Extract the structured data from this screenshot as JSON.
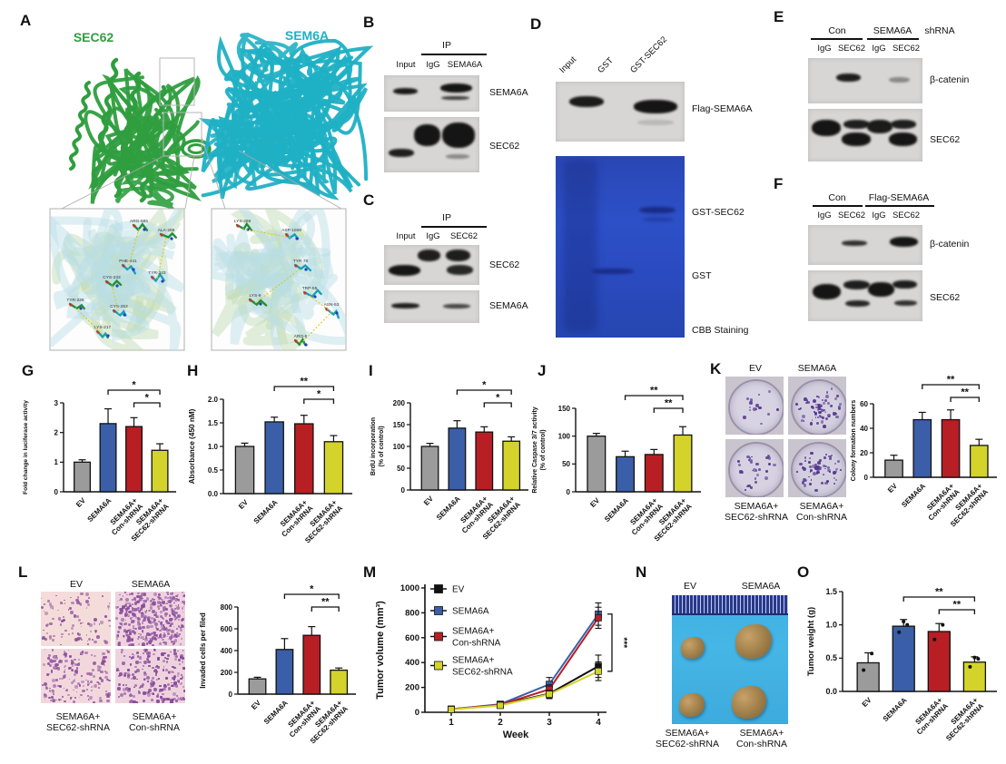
{
  "colors": {
    "bar_gray": "#9b9b9b",
    "bar_blue": "#3a5fa8",
    "bar_red": "#b71f25",
    "bar_yellow": "#d3d32b",
    "protein_green": "#2f9e3f",
    "protein_cyan": "#1fb0c4",
    "gel_blue": "#2b4cc0",
    "photo_blue": "#3fb0e2",
    "colony_purple": "#53368f",
    "invasion_purple": "#8a4d9c"
  },
  "bar_label_lines": [
    [
      "EV"
    ],
    [
      "SEMA6A"
    ],
    [
      "SEMA6A+",
      "Con-shRNA"
    ],
    [
      "SEMA6A+",
      "SEC62-shRNA"
    ]
  ],
  "panels": {
    "A": {
      "label": "A",
      "protein_left": "SEC62",
      "protein_right": "SEM6A",
      "inset_left_residues": [
        "ARG-585",
        "ALA-288",
        "PHE-241",
        "TYR-243",
        "CYS-233",
        "CYS-253",
        "TYR-226",
        "LYS-217"
      ],
      "inset_right_residues": [
        "LYS-368",
        "ASP-1009",
        "TYR-70",
        "TRP-55",
        "ASN-53",
        "LYS-9",
        "ARG-6"
      ]
    },
    "B": {
      "label": "B",
      "ip": "IP",
      "lanes": [
        "Input",
        "IgG",
        "SEMA6A"
      ],
      "blot1": "SEMA6A",
      "blot2": "SEC62"
    },
    "C": {
      "label": "C",
      "ip": "IP",
      "lanes": [
        "Input",
        "IgG",
        "SEC62"
      ],
      "blot1": "SEC62",
      "blot2": "SEMA6A"
    },
    "D": {
      "label": "D",
      "lanes": [
        "Input",
        "GST",
        "GST-SEC62"
      ],
      "blot1": "Flag-SEMA6A",
      "gel_band1": "GST-SEC62",
      "gel_band2": "GST",
      "gel_caption": "CBB Staining"
    },
    "E": {
      "label": "E",
      "group1": "Con",
      "group2": "SEMA6A",
      "suffix": "shRNA",
      "lanes": [
        "IgG",
        "SEC62",
        "IgG",
        "SEC62"
      ],
      "blot1": "β-catenin",
      "blot2": "SEC62"
    },
    "F": {
      "label": "F",
      "group1": "Con",
      "group2": "Flag-SEMA6A",
      "lanes": [
        "IgG",
        "SEC62",
        "IgG",
        "SEC62"
      ],
      "blot1": "β-catenin",
      "blot2": "SEC62"
    },
    "G": {
      "label": "G"
    },
    "H": {
      "label": "H"
    },
    "I": {
      "label": "I"
    },
    "J": {
      "label": "J"
    },
    "K": {
      "label": "K",
      "img_top": [
        "EV",
        "SEMA6A"
      ],
      "img_bottom": [
        [
          "SEMA6A+",
          "SEC62-shRNA"
        ],
        [
          "SEMA6A+",
          "Con-shRNA"
        ]
      ]
    },
    "L": {
      "label": "L",
      "img_top": [
        "EV",
        "SEMA6A"
      ],
      "img_bottom": [
        [
          "SEMA6A+",
          "SEC62-shRNA"
        ],
        [
          "SEMA6A+",
          "Con-shRNA"
        ]
      ]
    },
    "M": {
      "label": "M"
    },
    "N": {
      "label": "N",
      "img_top": [
        "EV",
        "SEMA6A"
      ],
      "img_bottom": [
        [
          "SEMA6A+",
          "SEC62-shRNA"
        ],
        [
          "SEMA6A+",
          "Con-shRNA"
        ]
      ]
    },
    "O": {
      "label": "O"
    }
  },
  "chart_data": [
    {
      "id": "G",
      "type": "bar",
      "ylabel": "Fold change in luciferase activity",
      "categories": [
        "EV",
        "SEMA6A",
        "SEMA6A+Con-shRNA",
        "SEMA6A+SEC62-shRNA"
      ],
      "values": [
        1.0,
        2.3,
        2.2,
        1.4
      ],
      "errors": [
        0.08,
        0.5,
        0.3,
        0.22
      ],
      "ylim": [
        0,
        3
      ],
      "yticks": [
        0,
        1,
        2,
        3
      ],
      "ytick_labels": [
        "0",
        "1",
        "2",
        "3"
      ],
      "sig": [
        {
          "from": 1,
          "to": 3,
          "label": "*"
        },
        {
          "from": 2,
          "to": 3,
          "label": "*"
        }
      ]
    },
    {
      "id": "H",
      "type": "bar",
      "ylabel": "Absorbance (450 nM)",
      "categories": [
        "EV",
        "SEMA6A",
        "SEMA6A+Con-shRNA",
        "SEMA6A+SEC62-shRNA"
      ],
      "values": [
        1.0,
        1.52,
        1.48,
        1.1
      ],
      "errors": [
        0.07,
        0.1,
        0.18,
        0.13
      ],
      "ylim": [
        0,
        2
      ],
      "yticks": [
        0,
        0.5,
        1,
        1.5,
        2
      ],
      "ytick_labels": [
        "0.0",
        "0.5",
        "1.0",
        "1.5",
        "2.0"
      ],
      "sig": [
        {
          "from": 1,
          "to": 3,
          "label": "**"
        },
        {
          "from": 2,
          "to": 3,
          "label": "*"
        }
      ]
    },
    {
      "id": "I",
      "type": "bar",
      "ylabel": "BrdU incorporation (% of control)",
      "ylabel_lines": [
        "BrdU incorporation",
        "(% of control)"
      ],
      "categories": [
        "EV",
        "SEMA6A",
        "SEMA6A+Con-shRNA",
        "SEMA6A+SEC62-shRNA"
      ],
      "values": [
        100,
        142,
        133,
        112
      ],
      "errors": [
        7,
        17,
        12,
        10
      ],
      "ylim": [
        0,
        200
      ],
      "yticks": [
        0,
        50,
        100,
        150,
        200
      ],
      "ytick_labels": [
        "0",
        "50",
        "100",
        "150",
        "200"
      ],
      "sig": [
        {
          "from": 1,
          "to": 3,
          "label": "*"
        },
        {
          "from": 2,
          "to": 3,
          "label": "*"
        }
      ]
    },
    {
      "id": "J",
      "type": "bar",
      "ylabel": "Relative Caspase 3/7 activity (% of control)",
      "ylabel_lines": [
        "Relative Caspase 3/7 activity",
        "(% of control)"
      ],
      "categories": [
        "EV",
        "SEMA6A",
        "SEMA6A+Con-shRNA",
        "SEMA6A+SEC62-shRNA"
      ],
      "values": [
        100,
        63,
        67,
        102
      ],
      "errors": [
        5,
        10,
        9,
        15
      ],
      "ylim": [
        0,
        150
      ],
      "yticks": [
        0,
        50,
        100,
        150
      ],
      "ytick_labels": [
        "0",
        "50",
        "100",
        "150"
      ],
      "sig": [
        {
          "from": 1,
          "to": 3,
          "label": "**"
        },
        {
          "from": 2,
          "to": 3,
          "label": "**"
        }
      ]
    },
    {
      "id": "K",
      "type": "bar",
      "ylabel": "Colony formation numbers",
      "categories": [
        "EV",
        "SEMA6A",
        "SEMA6A+Con-shRNA",
        "SEMA6A+SEC62-shRNA"
      ],
      "values": [
        14,
        47,
        47,
        26
      ],
      "errors": [
        4,
        6,
        8,
        5
      ],
      "ylim": [
        0,
        60
      ],
      "yticks": [
        0,
        20,
        40,
        60
      ],
      "ytick_labels": [
        "0",
        "20",
        "40",
        "60"
      ],
      "sig": [
        {
          "from": 1,
          "to": 3,
          "label": "**"
        },
        {
          "from": 2,
          "to": 3,
          "label": "**"
        }
      ]
    },
    {
      "id": "L",
      "type": "bar",
      "ylabel": "Invaded cells per filed",
      "categories": [
        "EV",
        "SEMA6A",
        "SEMA6A+Con-shRNA",
        "SEMA6A+SEC62-shRNA"
      ],
      "values": [
        140,
        410,
        540,
        220
      ],
      "errors": [
        15,
        100,
        80,
        20
      ],
      "ylim": [
        0,
        800
      ],
      "yticks": [
        0,
        200,
        400,
        600,
        800
      ],
      "ytick_labels": [
        "0",
        "200",
        "400",
        "600",
        "800"
      ],
      "sig": [
        {
          "from": 1,
          "to": 3,
          "label": "*"
        },
        {
          "from": 2,
          "to": 3,
          "label": "**"
        }
      ]
    },
    {
      "id": "M",
      "type": "line",
      "ylabel": "Tumor volume (mm³)",
      "xlabel": "Week",
      "x": [
        1,
        2,
        3,
        4
      ],
      "xtick_labels": [
        "1",
        "2",
        "3",
        "4"
      ],
      "ylim": [
        0,
        1000
      ],
      "yticks": [
        0,
        200,
        400,
        600,
        800,
        1000
      ],
      "ytick_labels": [
        "0",
        "200",
        "400",
        "600",
        "800",
        "1000"
      ],
      "legend_position": "top-left",
      "sig": "***",
      "series": [
        {
          "name": "EV",
          "name_lines": [
            "EV"
          ],
          "color": "#111111",
          "values": [
            25,
            60,
            150,
            370
          ],
          "errors": [
            8,
            12,
            40,
            90
          ]
        },
        {
          "name": "SEMA6A",
          "name_lines": [
            "SEMA6A"
          ],
          "color": "#3a5fa8",
          "values": [
            25,
            65,
            225,
            790
          ],
          "errors": [
            8,
            15,
            55,
            90
          ]
        },
        {
          "name": "SEMA6A+Con-shRNA",
          "name_lines": [
            "SEMA6A+",
            "Con-shRNA"
          ],
          "color": "#b71f25",
          "values": [
            25,
            60,
            185,
            760
          ],
          "errors": [
            8,
            12,
            35,
            85
          ]
        },
        {
          "name": "SEMA6A+SEC62-shRNA",
          "name_lines": [
            "SEMA6A+",
            "SEC62-shRNA"
          ],
          "color": "#d3d32b",
          "values": [
            22,
            55,
            145,
            330
          ],
          "errors": [
            8,
            12,
            30,
            75
          ]
        }
      ]
    },
    {
      "id": "O",
      "type": "bar",
      "ylabel": "Tumor weight (g)",
      "categories": [
        "EV",
        "SEMA6A",
        "SEMA6A+Con-shRNA",
        "SEMA6A+SEC62-shRNA"
      ],
      "values": [
        0.43,
        0.98,
        0.9,
        0.44
      ],
      "errors": [
        0.15,
        0.1,
        0.12,
        0.08
      ],
      "dots": [
        [
          0.32,
          0.57
        ],
        [
          0.89,
          1.0,
          1.05
        ],
        [
          0.78,
          1.0
        ],
        [
          0.37,
          0.49,
          0.51
        ]
      ],
      "ylim": [
        0,
        1.5
      ],
      "yticks": [
        0,
        0.5,
        1,
        1.5
      ],
      "ytick_labels": [
        "0.0",
        "0.5",
        "1.0",
        "1.5"
      ],
      "sig": [
        {
          "from": 1,
          "to": 3,
          "label": "**"
        },
        {
          "from": 2,
          "to": 3,
          "label": "**"
        }
      ]
    }
  ]
}
